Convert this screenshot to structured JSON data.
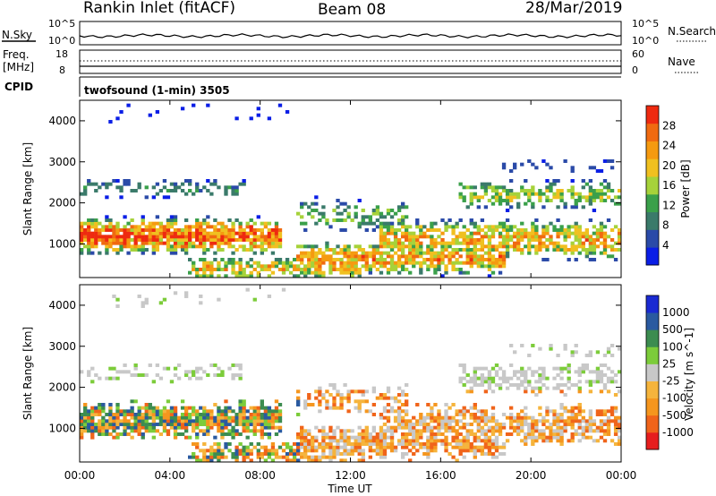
{
  "header": {
    "station": "Rankin Inlet (fitACF)",
    "beam": "Beam 08",
    "date": "28/Mar/2019"
  },
  "noise_panel": {
    "left_label": "N.Sky",
    "right_label": "N.Search",
    "left_ticks": [
      "10^5",
      "10^0"
    ],
    "right_ticks": [
      "10^5",
      "10^0"
    ]
  },
  "freq_panel": {
    "left_label_1": "Freq.",
    "left_label_2": "[MHz]",
    "right_label": "Nave",
    "left_ticks": [
      "18",
      "8"
    ],
    "right_ticks": [
      "60",
      "0"
    ]
  },
  "cpid": {
    "label": "CPID",
    "text": "twofsound (1-min) 3505"
  },
  "time_axis": {
    "label": "Time UT",
    "ticks": [
      "00:00",
      "04:00",
      "08:00",
      "12:00",
      "16:00",
      "20:00",
      "00:00"
    ]
  },
  "colors": {
    "power": [
      "#0a1ee6",
      "#2a4aa8",
      "#3a7a6a",
      "#3aa04a",
      "#a6d23a",
      "#f0c020",
      "#f59a10",
      "#f06a10",
      "#ee2a10"
    ],
    "velocity": [
      "#e61e1e",
      "#f0641a",
      "#f5961e",
      "#f5b43c",
      "#c8c8c8",
      "#7ccc3a",
      "#3c8c50",
      "#2a5aa0",
      "#1a2ad2"
    ]
  },
  "chart_data": [
    {
      "type": "heatmap",
      "title": "",
      "xlabel": "Time UT",
      "ylabel": "Slant Range [km]",
      "x_ticks": [
        "00:00",
        "04:00",
        "08:00",
        "12:00",
        "16:00",
        "20:00",
        "00:00"
      ],
      "y_ticks": [
        1000,
        2000,
        3000,
        4000
      ],
      "ylim": [
        180,
        4500
      ],
      "colorbar": {
        "label": "Power [dB]",
        "ticks": [
          4,
          8,
          12,
          16,
          20,
          24,
          28
        ],
        "range": [
          0,
          31
        ]
      }
    },
    {
      "type": "heatmap",
      "title": "",
      "xlabel": "Time UT",
      "ylabel": "Slant Range [km]",
      "x_ticks": [
        "00:00",
        "04:00",
        "08:00",
        "12:00",
        "16:00",
        "20:00",
        "00:00"
      ],
      "y_ticks": [
        1000,
        2000,
        3000,
        4000
      ],
      "ylim": [
        180,
        4500
      ],
      "colorbar": {
        "label": "Velocity [m s^-1]",
        "ticks": [
          "1000",
          "500",
          "100",
          "25",
          "-25",
          "-100",
          "-500",
          "-1000"
        ]
      }
    }
  ]
}
